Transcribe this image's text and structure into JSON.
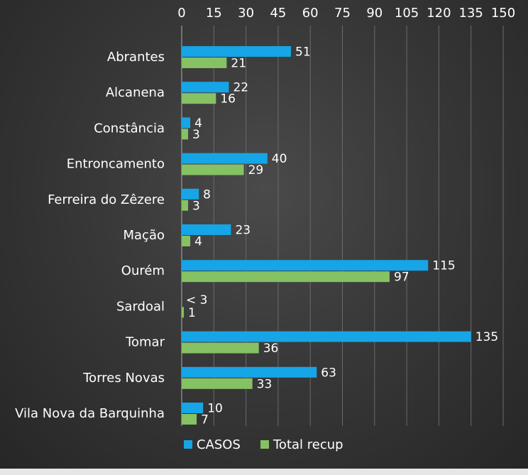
{
  "chart_data": {
    "type": "bar",
    "orientation": "horizontal",
    "categories": [
      "Abrantes",
      "Alcanena",
      "Constância",
      "Entroncamento",
      "Ferreira do Zêzere",
      "Mação",
      "Ourém",
      "Sardoal",
      "Tomar",
      "Torres Novas",
      "Vila Nova da Barquinha"
    ],
    "series": [
      {
        "name": "CASOS",
        "color": "#16a5e6",
        "values": [
          51,
          22,
          4,
          40,
          8,
          23,
          115,
          0,
          135,
          63,
          10
        ],
        "labels": [
          "51",
          "22",
          "4",
          "40",
          "8",
          "23",
          "115",
          "< 3",
          "135",
          "63",
          "10"
        ]
      },
      {
        "name": "Total recup",
        "color": "#86c164",
        "values": [
          21,
          16,
          3,
          29,
          3,
          4,
          97,
          1,
          36,
          33,
          7
        ],
        "labels": [
          "21",
          "16",
          "3",
          "29",
          "3",
          "4",
          "97",
          "1",
          "36",
          "33",
          "7"
        ]
      }
    ],
    "xaxis": {
      "position": "top",
      "ticks": [
        "0",
        "15",
        "30",
        "45",
        "60",
        "75",
        "90",
        "105",
        "120",
        "135",
        "150"
      ]
    },
    "xlim": [
      0,
      150
    ],
    "grid": true,
    "legend": "bottom"
  }
}
